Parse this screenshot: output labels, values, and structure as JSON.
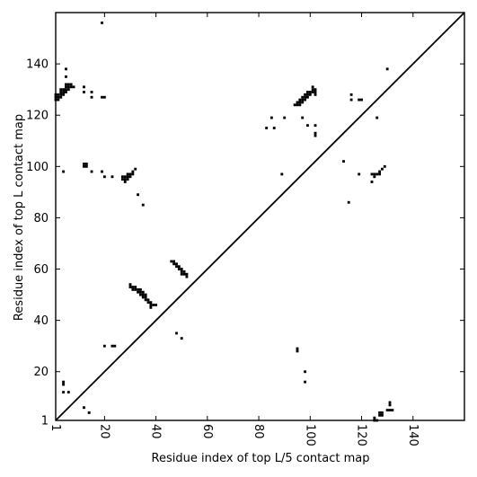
{
  "chart_data": {
    "type": "scatter",
    "title": "",
    "xlabel": "Residue index of top L/5 contact map",
    "ylabel": "Residue index of top L contact map",
    "xlim": [
      1,
      160
    ],
    "ylim": [
      1,
      160
    ],
    "xticks": [
      1,
      20,
      40,
      60,
      80,
      100,
      120,
      140
    ],
    "yticks": [
      1,
      20,
      40,
      60,
      80,
      100,
      120,
      140
    ],
    "diagonal_line": true,
    "grid": false,
    "series": [
      {
        "color": "#000000",
        "points": [
          [
            1,
            126
          ],
          [
            1,
            127
          ],
          [
            1,
            128
          ],
          [
            2,
            126
          ],
          [
            2,
            127
          ],
          [
            2,
            128
          ],
          [
            3,
            127
          ],
          [
            3,
            128
          ],
          [
            3,
            129
          ],
          [
            3,
            130
          ],
          [
            4,
            128
          ],
          [
            4,
            129
          ],
          [
            4,
            130
          ],
          [
            5,
            129
          ],
          [
            5,
            130
          ],
          [
            5,
            131
          ],
          [
            5,
            132
          ],
          [
            6,
            130
          ],
          [
            6,
            131
          ],
          [
            6,
            132
          ],
          [
            7,
            131
          ],
          [
            7,
            132
          ],
          [
            8,
            131
          ],
          [
            5,
            135
          ],
          [
            5,
            138
          ],
          [
            4,
            98
          ],
          [
            12,
            129
          ],
          [
            12,
            131
          ],
          [
            15,
            127
          ],
          [
            15,
            129
          ],
          [
            19,
            127
          ],
          [
            20,
            127
          ],
          [
            12,
            100
          ],
          [
            12,
            101
          ],
          [
            13,
            100
          ],
          [
            13,
            101
          ],
          [
            15,
            98
          ],
          [
            19,
            98
          ],
          [
            20,
            96
          ],
          [
            23,
            96
          ],
          [
            19,
            156
          ],
          [
            27,
            95
          ],
          [
            27,
            96
          ],
          [
            28,
            94
          ],
          [
            28,
            95
          ],
          [
            28,
            96
          ],
          [
            29,
            95
          ],
          [
            29,
            96
          ],
          [
            29,
            97
          ],
          [
            30,
            96
          ],
          [
            30,
            97
          ],
          [
            31,
            97
          ],
          [
            31,
            98
          ],
          [
            32,
            99
          ],
          [
            33,
            89
          ],
          [
            35,
            85
          ],
          [
            30,
            53
          ],
          [
            30,
            54
          ],
          [
            31,
            52
          ],
          [
            31,
            53
          ],
          [
            32,
            52
          ],
          [
            32,
            53
          ],
          [
            33,
            51
          ],
          [
            33,
            52
          ],
          [
            34,
            50
          ],
          [
            34,
            51
          ],
          [
            34,
            52
          ],
          [
            35,
            49
          ],
          [
            35,
            50
          ],
          [
            35,
            51
          ],
          [
            36,
            48
          ],
          [
            36,
            49
          ],
          [
            36,
            50
          ],
          [
            37,
            47
          ],
          [
            37,
            48
          ],
          [
            38,
            45
          ],
          [
            38,
            46
          ],
          [
            38,
            47
          ],
          [
            39,
            46
          ],
          [
            40,
            46
          ],
          [
            46,
            63
          ],
          [
            47,
            62
          ],
          [
            47,
            63
          ],
          [
            48,
            61
          ],
          [
            48,
            62
          ],
          [
            49,
            60
          ],
          [
            49,
            61
          ],
          [
            50,
            58
          ],
          [
            50,
            59
          ],
          [
            50,
            60
          ],
          [
            51,
            58
          ],
          [
            51,
            59
          ],
          [
            52,
            57
          ],
          [
            52,
            58
          ],
          [
            4,
            15
          ],
          [
            4,
            16
          ],
          [
            4,
            12
          ],
          [
            6,
            12
          ],
          [
            12,
            6
          ],
          [
            14,
            4
          ],
          [
            20,
            30
          ],
          [
            23,
            30
          ],
          [
            24,
            30
          ],
          [
            48,
            35
          ],
          [
            50,
            33
          ],
          [
            83,
            115
          ],
          [
            85,
            119
          ],
          [
            86,
            115
          ],
          [
            89,
            97
          ],
          [
            90,
            119
          ],
          [
            95,
            28
          ],
          [
            95,
            29
          ],
          [
            98,
            16
          ],
          [
            98,
            20
          ],
          [
            94,
            124
          ],
          [
            95,
            124
          ],
          [
            95,
            125
          ],
          [
            96,
            124
          ],
          [
            96,
            125
          ],
          [
            96,
            126
          ],
          [
            97,
            125
          ],
          [
            97,
            126
          ],
          [
            97,
            127
          ],
          [
            98,
            126
          ],
          [
            98,
            127
          ],
          [
            98,
            128
          ],
          [
            99,
            127
          ],
          [
            99,
            128
          ],
          [
            99,
            129
          ],
          [
            100,
            128
          ],
          [
            100,
            129
          ],
          [
            101,
            129
          ],
          [
            101,
            130
          ],
          [
            102,
            128
          ],
          [
            102,
            129
          ],
          [
            102,
            130
          ],
          [
            101,
            131
          ],
          [
            97,
            119
          ],
          [
            99,
            116
          ],
          [
            102,
            116
          ],
          [
            102,
            112
          ],
          [
            102,
            113
          ],
          [
            113,
            102
          ],
          [
            115,
            86
          ],
          [
            116,
            126
          ],
          [
            116,
            128
          ],
          [
            119,
            126
          ],
          [
            120,
            126
          ],
          [
            119,
            97
          ],
          [
            124,
            94
          ],
          [
            124,
            97
          ],
          [
            125,
            96
          ],
          [
            125,
            97
          ],
          [
            126,
            97
          ],
          [
            127,
            97
          ],
          [
            127,
            98
          ],
          [
            128,
            99
          ],
          [
            129,
            100
          ],
          [
            126,
            119
          ],
          [
            130,
            138
          ],
          [
            125,
            1
          ],
          [
            125,
            2
          ],
          [
            126,
            1
          ],
          [
            127,
            3
          ],
          [
            127,
            4
          ],
          [
            128,
            3
          ],
          [
            128,
            4
          ],
          [
            130,
            5
          ],
          [
            131,
            5
          ],
          [
            132,
            5
          ],
          [
            131,
            7
          ],
          [
            131,
            8
          ]
        ]
      }
    ]
  }
}
